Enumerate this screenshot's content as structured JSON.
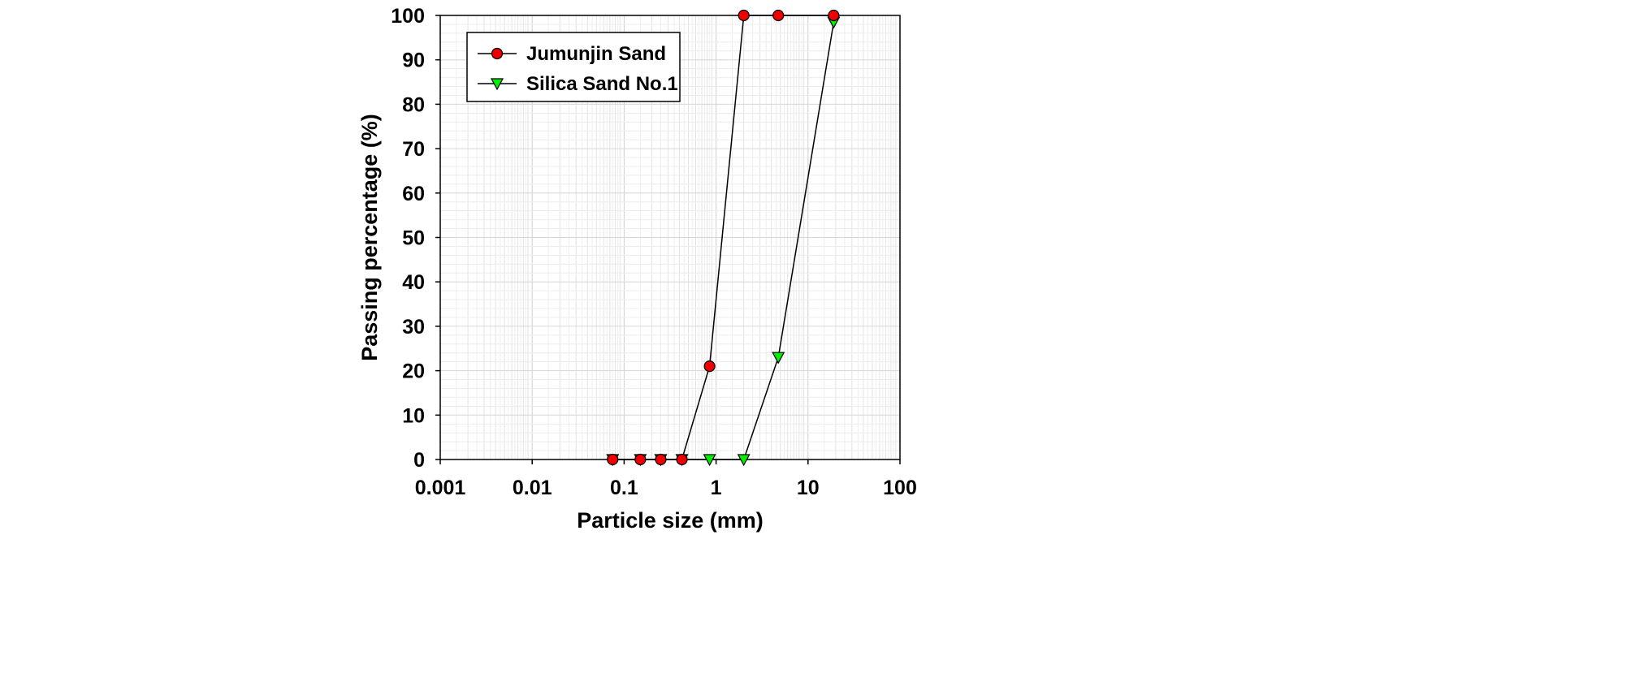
{
  "chart_data": {
    "type": "line",
    "title": "",
    "xlabel": "Particle size (mm)",
    "ylabel": "Passing percentage (%)",
    "xscale": "log",
    "xlim": [
      0.001,
      100
    ],
    "ylim": [
      0,
      100
    ],
    "x_ticks": [
      0.001,
      0.01,
      0.1,
      1,
      10,
      100
    ],
    "x_tick_labels": [
      "0.001",
      "0.01",
      "0.1",
      "1",
      "10",
      "100"
    ],
    "y_ticks": [
      0,
      10,
      20,
      30,
      40,
      50,
      60,
      70,
      80,
      90,
      100
    ],
    "y_tick_labels": [
      "0",
      "10",
      "20",
      "30",
      "40",
      "50",
      "60",
      "70",
      "80",
      "90",
      "100"
    ],
    "grid": true,
    "legend_position": "top-left",
    "series": [
      {
        "name": "Jumunjin Sand",
        "marker": "circle",
        "color": "#ee0000",
        "x": [
          0.075,
          0.15,
          0.25,
          0.425,
          0.85,
          2.0,
          4.75,
          19.0
        ],
        "y": [
          0,
          0,
          0,
          0,
          21,
          100,
          100,
          100
        ]
      },
      {
        "name": "Silica Sand No.1",
        "marker": "triangle-down",
        "color": "#00ee00",
        "x": [
          0.075,
          0.15,
          0.25,
          0.425,
          0.85,
          2.0,
          4.75,
          19.0
        ],
        "y": [
          0,
          0,
          0,
          0,
          0,
          0,
          23,
          98.5
        ]
      }
    ]
  }
}
